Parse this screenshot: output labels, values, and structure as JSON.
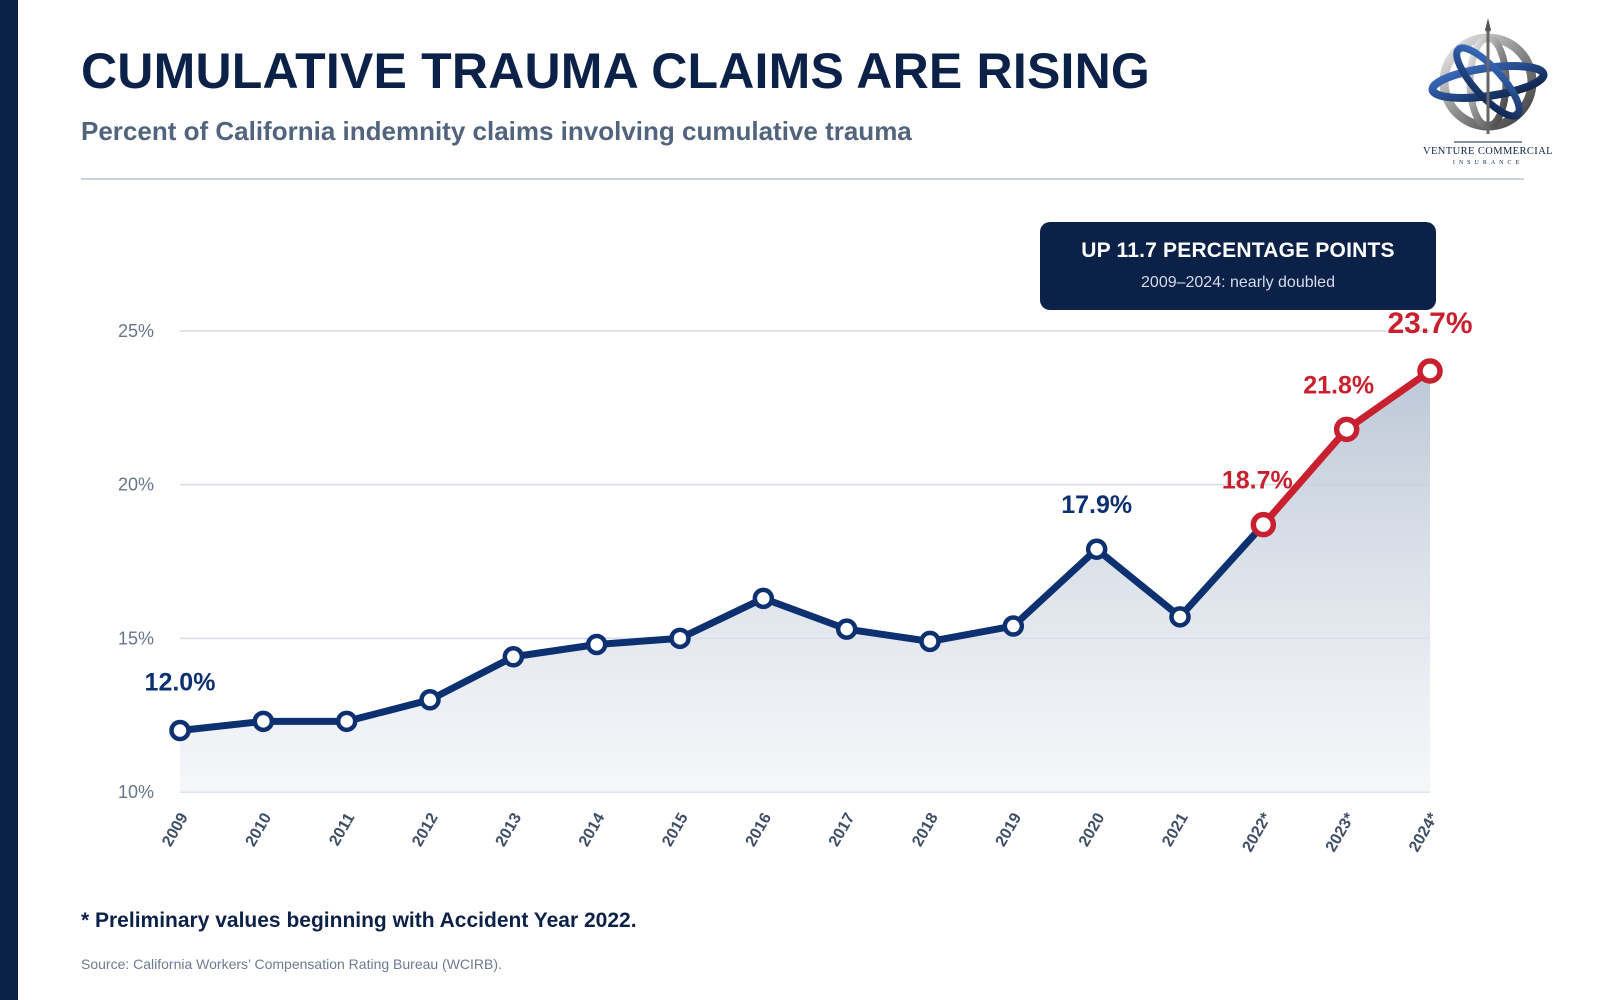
{
  "header": {
    "title": "CUMULATIVE TRAUMA CLAIMS ARE RISING",
    "subtitle": "Percent of California indemnity claims involving cumulative trauma"
  },
  "logo": {
    "name": "VENTURE COMMERCIAL",
    "tagline": "INSURANCE",
    "icon": "globe-icon"
  },
  "callout": {
    "title": "UP 11.7 PERCENTAGE POINTS",
    "subtitle": "2009–2024: nearly doubled"
  },
  "chart_data": {
    "type": "line",
    "title": "CUMULATIVE TRAUMA CLAIMS ARE RISING",
    "subtitle": "Percent of California indemnity claims involving cumulative trauma",
    "categories": [
      "2009",
      "2010",
      "2011",
      "2012",
      "2013",
      "2014",
      "2015",
      "2016",
      "2017",
      "2018",
      "2019",
      "2020",
      "2021",
      "2022*",
      "2023*",
      "2024*"
    ],
    "values": [
      12.0,
      12.3,
      12.3,
      13.0,
      14.4,
      14.8,
      15.0,
      16.3,
      15.3,
      14.9,
      15.4,
      17.9,
      15.7,
      18.7,
      21.8,
      23.7
    ],
    "preliminary_from_index": 13,
    "ylim": [
      10,
      25
    ],
    "yticks": [
      10,
      15,
      20,
      25
    ],
    "ytick_labels": [
      "10%",
      "15%",
      "20%",
      "25%"
    ],
    "xlabel": "",
    "ylabel": "",
    "grid": true,
    "legend": "none",
    "data_labels": [
      {
        "index": 0,
        "text": "12.0%",
        "color": "#0c3070"
      },
      {
        "index": 11,
        "text": "17.9%",
        "color": "#0c3070"
      },
      {
        "index": 13,
        "text": "18.7%",
        "color": "#c8202e"
      },
      {
        "index": 14,
        "text": "21.8%",
        "color": "#c8202e"
      },
      {
        "index": 15,
        "text": "23.7%",
        "color": "#c8202e"
      }
    ],
    "colors": {
      "actual": "#0c3070",
      "preliminary": "#c8202e",
      "area": "#b9c4d4",
      "grid": "#d5dce5",
      "axis_text": "#66768a"
    }
  },
  "footer": {
    "footnote": "* Preliminary values beginning with Accident Year 2022.",
    "source": "Source: California Workers’ Compensation Rating Bureau (WCIRB)."
  }
}
